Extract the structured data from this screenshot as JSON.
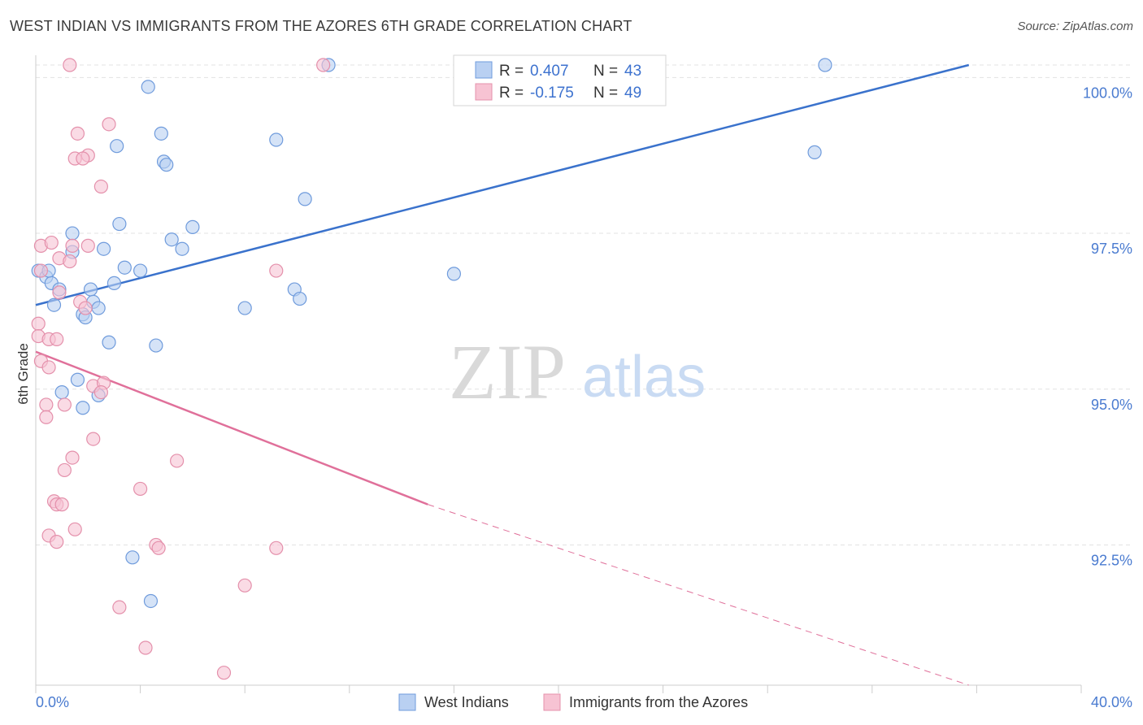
{
  "header": {
    "title": "WEST INDIAN VS IMMIGRANTS FROM THE AZORES 6TH GRADE CORRELATION CHART",
    "source": "Source: ZipAtlas.com"
  },
  "watermark": {
    "part1": "ZIP",
    "part2": "atlas"
  },
  "legend": {
    "rows": [
      {
        "r_label": "R =",
        "r_value": "0.407",
        "n_label": "N =",
        "n_value": "43"
      },
      {
        "r_label": "R =",
        "r_value": "-0.175",
        "n_label": "N =",
        "n_value": "49"
      }
    ]
  },
  "colors": {
    "blue_fill": "#b9d0f2",
    "blue_stroke": "#6f9bdc",
    "blue_line": "#3a72cc",
    "pink_fill": "#f7c3d3",
    "pink_stroke": "#e490ab",
    "pink_line": "#e0709a"
  },
  "chart_data": {
    "type": "scatter",
    "title": "WEST INDIAN VS IMMIGRANTS FROM THE AZORES 6TH GRADE CORRELATION CHART",
    "xlabel": "",
    "ylabel": "6th Grade",
    "xlim": [
      0,
      40
    ],
    "ylim": [
      90.25,
      100.2
    ],
    "x_tick_labels": [
      "0.0%",
      "40.0%"
    ],
    "y_ticks": [
      92.5,
      95.0,
      97.5,
      100.0
    ],
    "y_tick_labels": [
      "92.5%",
      "95.0%",
      "97.5%",
      "100.0%"
    ],
    "series": [
      {
        "name": "West Indians",
        "color": "blue",
        "trend": {
          "x0": 0,
          "y0": 96.35,
          "x1": 35.7,
          "y1": 100.2
        },
        "points": [
          [
            0.1,
            96.9
          ],
          [
            0.4,
            96.8
          ],
          [
            0.6,
            96.7
          ],
          [
            0.9,
            96.6
          ],
          [
            0.7,
            96.35
          ],
          [
            1.4,
            97.5
          ],
          [
            1.4,
            97.2
          ],
          [
            2.6,
            97.25
          ],
          [
            2.1,
            96.6
          ],
          [
            3.0,
            96.7
          ],
          [
            2.2,
            96.4
          ],
          [
            2.4,
            96.3
          ],
          [
            1.8,
            96.2
          ],
          [
            3.2,
            97.65
          ],
          [
            3.4,
            96.95
          ],
          [
            4.0,
            96.9
          ],
          [
            4.3,
            99.85
          ],
          [
            4.8,
            99.1
          ],
          [
            4.9,
            98.65
          ],
          [
            5.0,
            98.6
          ],
          [
            3.1,
            98.9
          ],
          [
            5.2,
            97.4
          ],
          [
            5.6,
            97.25
          ],
          [
            6.0,
            97.6
          ],
          [
            9.2,
            99.0
          ],
          [
            10.3,
            98.05
          ],
          [
            9.9,
            96.6
          ],
          [
            10.1,
            96.45
          ],
          [
            8.0,
            96.3
          ],
          [
            2.8,
            95.75
          ],
          [
            4.6,
            95.7
          ],
          [
            1.6,
            95.15
          ],
          [
            1.0,
            94.95
          ],
          [
            2.4,
            94.9
          ],
          [
            1.8,
            94.7
          ],
          [
            11.2,
            100.2
          ],
          [
            30.2,
            100.2
          ],
          [
            29.8,
            98.8
          ],
          [
            16.0,
            96.85
          ],
          [
            3.7,
            92.3
          ],
          [
            4.4,
            91.6
          ],
          [
            0.5,
            96.9
          ],
          [
            1.9,
            96.15
          ]
        ]
      },
      {
        "name": "Immigrants from the Azores",
        "color": "pink",
        "trend": {
          "x0": 0,
          "y0": 95.6,
          "x1": 15.0,
          "y1": 93.15
        },
        "trend_dashed": {
          "x0": 15.0,
          "y0": 93.15,
          "x1": 35.7,
          "y1": 90.25
        },
        "points": [
          [
            1.3,
            100.2
          ],
          [
            11.0,
            100.2
          ],
          [
            2.8,
            99.25
          ],
          [
            1.6,
            99.1
          ],
          [
            2.0,
            98.75
          ],
          [
            1.5,
            98.7
          ],
          [
            1.8,
            98.7
          ],
          [
            2.5,
            98.25
          ],
          [
            0.2,
            97.3
          ],
          [
            0.6,
            97.35
          ],
          [
            1.4,
            97.3
          ],
          [
            2.0,
            97.3
          ],
          [
            0.9,
            97.1
          ],
          [
            1.3,
            97.05
          ],
          [
            9.2,
            96.9
          ],
          [
            0.2,
            96.9
          ],
          [
            0.9,
            96.55
          ],
          [
            1.7,
            96.4
          ],
          [
            1.9,
            96.3
          ],
          [
            0.1,
            96.05
          ],
          [
            0.1,
            95.85
          ],
          [
            0.5,
            95.8
          ],
          [
            0.8,
            95.8
          ],
          [
            0.2,
            95.45
          ],
          [
            0.5,
            95.35
          ],
          [
            2.2,
            95.05
          ],
          [
            2.6,
            95.1
          ],
          [
            2.5,
            94.95
          ],
          [
            0.4,
            94.75
          ],
          [
            1.1,
            94.75
          ],
          [
            0.4,
            94.55
          ],
          [
            2.2,
            94.2
          ],
          [
            1.4,
            93.9
          ],
          [
            5.4,
            93.85
          ],
          [
            1.1,
            93.7
          ],
          [
            4.0,
            93.4
          ],
          [
            0.7,
            93.2
          ],
          [
            0.8,
            93.15
          ],
          [
            1.0,
            93.15
          ],
          [
            1.5,
            92.75
          ],
          [
            0.5,
            92.65
          ],
          [
            0.8,
            92.55
          ],
          [
            4.6,
            92.5
          ],
          [
            4.7,
            92.45
          ],
          [
            9.2,
            92.45
          ],
          [
            8.0,
            91.85
          ],
          [
            3.2,
            91.5
          ],
          [
            4.2,
            90.85
          ],
          [
            7.2,
            90.45
          ]
        ]
      }
    ],
    "bottom_legend": [
      "West Indians",
      "Immigrants from the Azores"
    ]
  }
}
